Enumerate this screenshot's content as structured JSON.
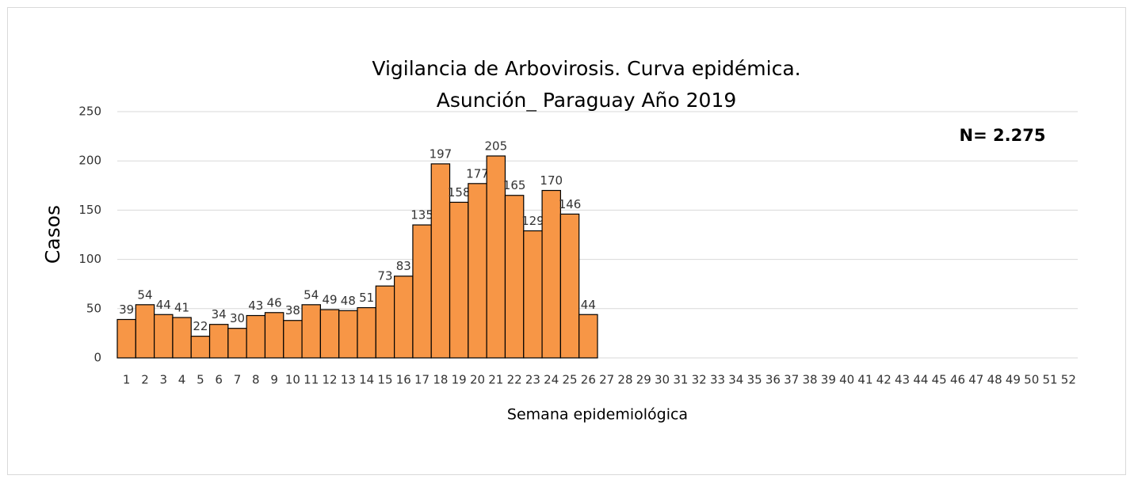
{
  "chart_data": {
    "type": "bar",
    "title": [
      "Vigilancia de Arbovirosis. Curva epidémica.",
      "Asunción_ Paraguay Año 2019"
    ],
    "x_label": "Semana epidemiológica",
    "y_label": "Casos",
    "annotation": "N= 2.275",
    "categories": [
      "1",
      "2",
      "3",
      "4",
      "5",
      "6",
      "7",
      "8",
      "9",
      "10",
      "11",
      "12",
      "13",
      "14",
      "15",
      "16",
      "17",
      "18",
      "19",
      "20",
      "21",
      "22",
      "23",
      "24",
      "25",
      "26",
      "27",
      "28",
      "29",
      "30",
      "31",
      "32",
      "33",
      "34",
      "35",
      "36",
      "37",
      "38",
      "39",
      "40",
      "41",
      "42",
      "43",
      "44",
      "45",
      "46",
      "47",
      "48",
      "49",
      "50",
      "51",
      "52"
    ],
    "values": [
      39,
      54,
      44,
      41,
      22,
      34,
      30,
      43,
      46,
      38,
      54,
      49,
      48,
      51,
      73,
      83,
      135,
      197,
      158,
      177,
      205,
      165,
      129,
      170,
      146,
      44,
      null,
      null,
      null,
      null,
      null,
      null,
      null,
      null,
      null,
      null,
      null,
      null,
      null,
      null,
      null,
      null,
      null,
      null,
      null,
      null,
      null,
      null,
      null,
      null,
      null,
      null
    ],
    "color": "#f79646",
    "ylim": [
      0,
      250
    ],
    "yticks": [
      0,
      50,
      100,
      150,
      200,
      250
    ],
    "grid": true
  }
}
